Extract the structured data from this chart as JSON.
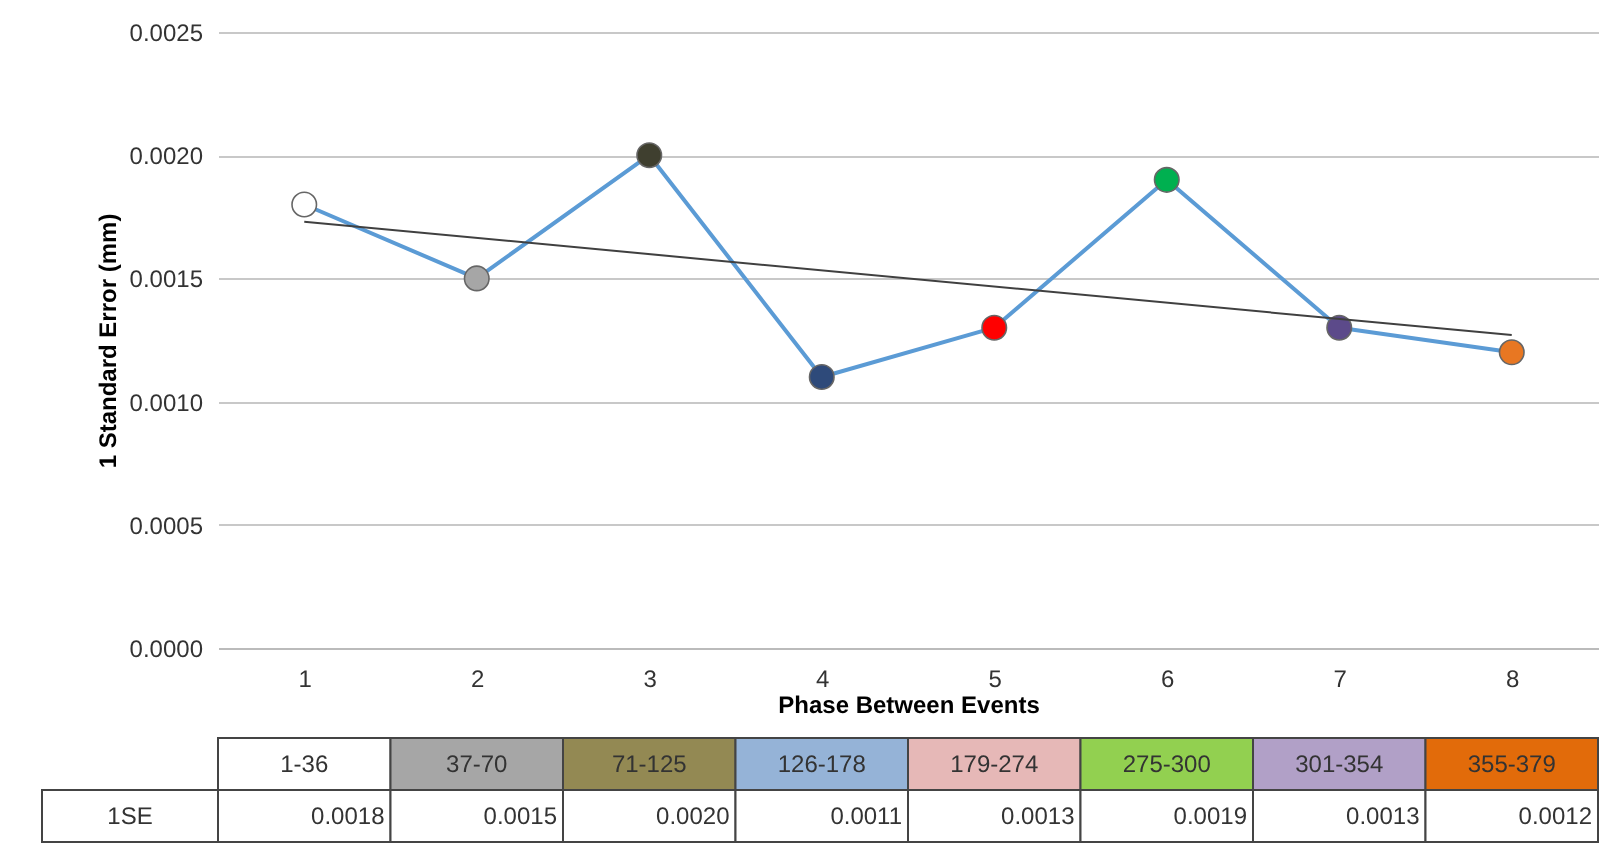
{
  "chart_data": {
    "type": "line",
    "xlabel": "Phase Between Events",
    "ylabel": "1 Standard Error (mm)",
    "categories": [
      "1",
      "2",
      "3",
      "4",
      "5",
      "6",
      "7",
      "8"
    ],
    "series": [
      {
        "color": "#5b9bd5",
        "marker": "circle",
        "colors": [
          "#ffffff",
          "#a6a6a6",
          "#3f3f2f",
          "#2e4a7a",
          "#ff0000",
          "#00b050",
          "#5c4a8a",
          "#e87722"
        ],
        "values": [
          0.0018,
          0.0015,
          0.002,
          0.0011,
          0.0013,
          0.0019,
          0.0013,
          0.0012
        ],
        "value_labels": [
          "0.0018",
          "0.0015",
          "0.0020",
          "0.0011",
          "0.0013",
          "0.0019",
          "0.0013",
          "0.0012"
        ]
      },
      {
        "color": "#404040",
        "marker": "none",
        "x": [
          "1",
          "8"
        ],
        "values": [
          0.00173,
          0.00127
        ]
      }
    ],
    "ylim": [
      0,
      0.0025
    ],
    "yticks": [
      {
        "value": 0,
        "label": "0.0000"
      },
      {
        "value": 0.0005,
        "label": "0.0005"
      },
      {
        "value": 0.001,
        "label": "0.0010"
      },
      {
        "value": 0.0015,
        "label": "0.0015"
      },
      {
        "value": 0.002,
        "label": "0.0020"
      },
      {
        "value": 0.0025,
        "label": "0.0025"
      }
    ],
    "grid": "y",
    "annotations": [
      "1-36",
      "37-70",
      "71-125",
      "126-178",
      "179-274",
      "275-300",
      "301-354",
      "355-379",
      "1SE"
    ]
  }
}
